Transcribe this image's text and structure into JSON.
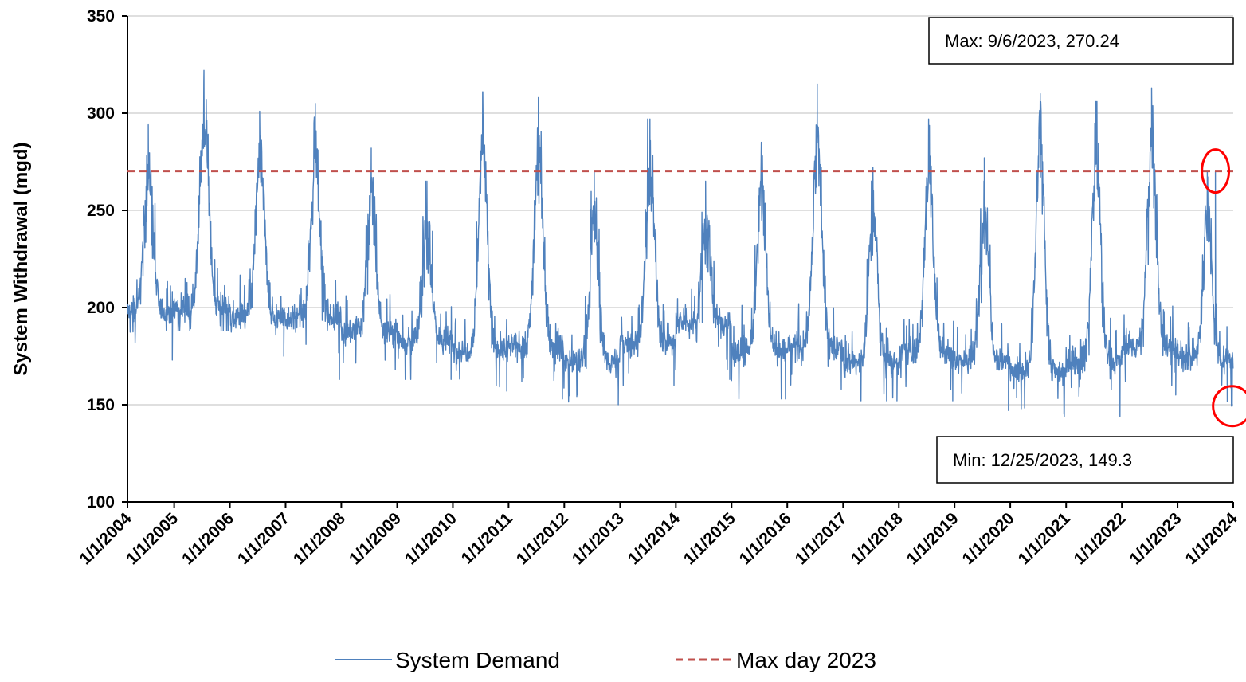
{
  "chart_data": {
    "type": "line",
    "title": "",
    "xlabel": "",
    "ylabel": "System Withdrawal (mgd)",
    "ylim": [
      100,
      350
    ],
    "yticks": [
      "100",
      "150",
      "200",
      "250",
      "300",
      "350"
    ],
    "xlim": [
      "2004-03-01",
      "2024-01-01"
    ],
    "xticks": [
      "1/1/2004",
      "1/1/2005",
      "1/1/2006",
      "1/1/2007",
      "1/1/2008",
      "1/1/2009",
      "1/1/2010",
      "1/1/2011",
      "1/1/2012",
      "1/1/2013",
      "1/1/2014",
      "1/1/2015",
      "1/1/2016",
      "1/1/2017",
      "1/1/2018",
      "1/1/2019",
      "1/1/2020",
      "1/1/2021",
      "1/1/2022",
      "1/1/2023",
      "1/1/2024"
    ],
    "grid": "horizontal",
    "legend_position": "bottom",
    "series": [
      {
        "name": "System Demand",
        "color": "#4F81BD",
        "style": "solid",
        "annual_profile": [
          {
            "year": 2004,
            "base": 198,
            "peak": 294,
            "min": 173
          },
          {
            "year": 2005,
            "base": 200,
            "peak": 322,
            "min": 188
          },
          {
            "year": 2006,
            "base": 195,
            "peak": 301,
            "min": 175
          },
          {
            "year": 2007,
            "base": 195,
            "peak": 305,
            "min": 163
          },
          {
            "year": 2008,
            "base": 188,
            "peak": 282,
            "min": 168
          },
          {
            "year": 2009,
            "base": 183,
            "peak": 265,
            "min": 163
          },
          {
            "year": 2010,
            "base": 178,
            "peak": 311,
            "min": 157
          },
          {
            "year": 2011,
            "base": 180,
            "peak": 308,
            "min": 153
          },
          {
            "year": 2012,
            "base": 172,
            "peak": 270,
            "min": 150
          },
          {
            "year": 2013,
            "base": 182,
            "peak": 297,
            "min": 160
          },
          {
            "year": 2014,
            "base": 192,
            "peak": 265,
            "min": 163
          },
          {
            "year": 2015,
            "base": 178,
            "peak": 285,
            "min": 153
          },
          {
            "year": 2016,
            "base": 180,
            "peak": 315,
            "min": 158
          },
          {
            "year": 2017,
            "base": 172,
            "peak": 272,
            "min": 152
          },
          {
            "year": 2018,
            "base": 177,
            "peak": 297,
            "min": 152
          },
          {
            "year": 2019,
            "base": 173,
            "peak": 277,
            "min": 147
          },
          {
            "year": 2020,
            "base": 167,
            "peak": 310,
            "min": 144
          },
          {
            "year": 2021,
            "base": 172,
            "peak": 306,
            "min": 144
          },
          {
            "year": 2022,
            "base": 180,
            "peak": 313,
            "min": 155
          },
          {
            "year": 2023,
            "base": 174,
            "peak": 270.24,
            "min": 149.3
          }
        ]
      },
      {
        "name": "Max day 2023",
        "color": "#C0504D",
        "style": "dashed",
        "value": 270.24
      }
    ],
    "annotations": [
      {
        "text": "Max: 9/6/2023, 270.24",
        "date": "2023-09-06",
        "value": 270.24,
        "marker_color": "#FF0000"
      },
      {
        "text": "Min: 12/25/2023, 149.3",
        "date": "2023-12-25",
        "value": 149.3,
        "marker_color": "#FF0000"
      }
    ]
  }
}
